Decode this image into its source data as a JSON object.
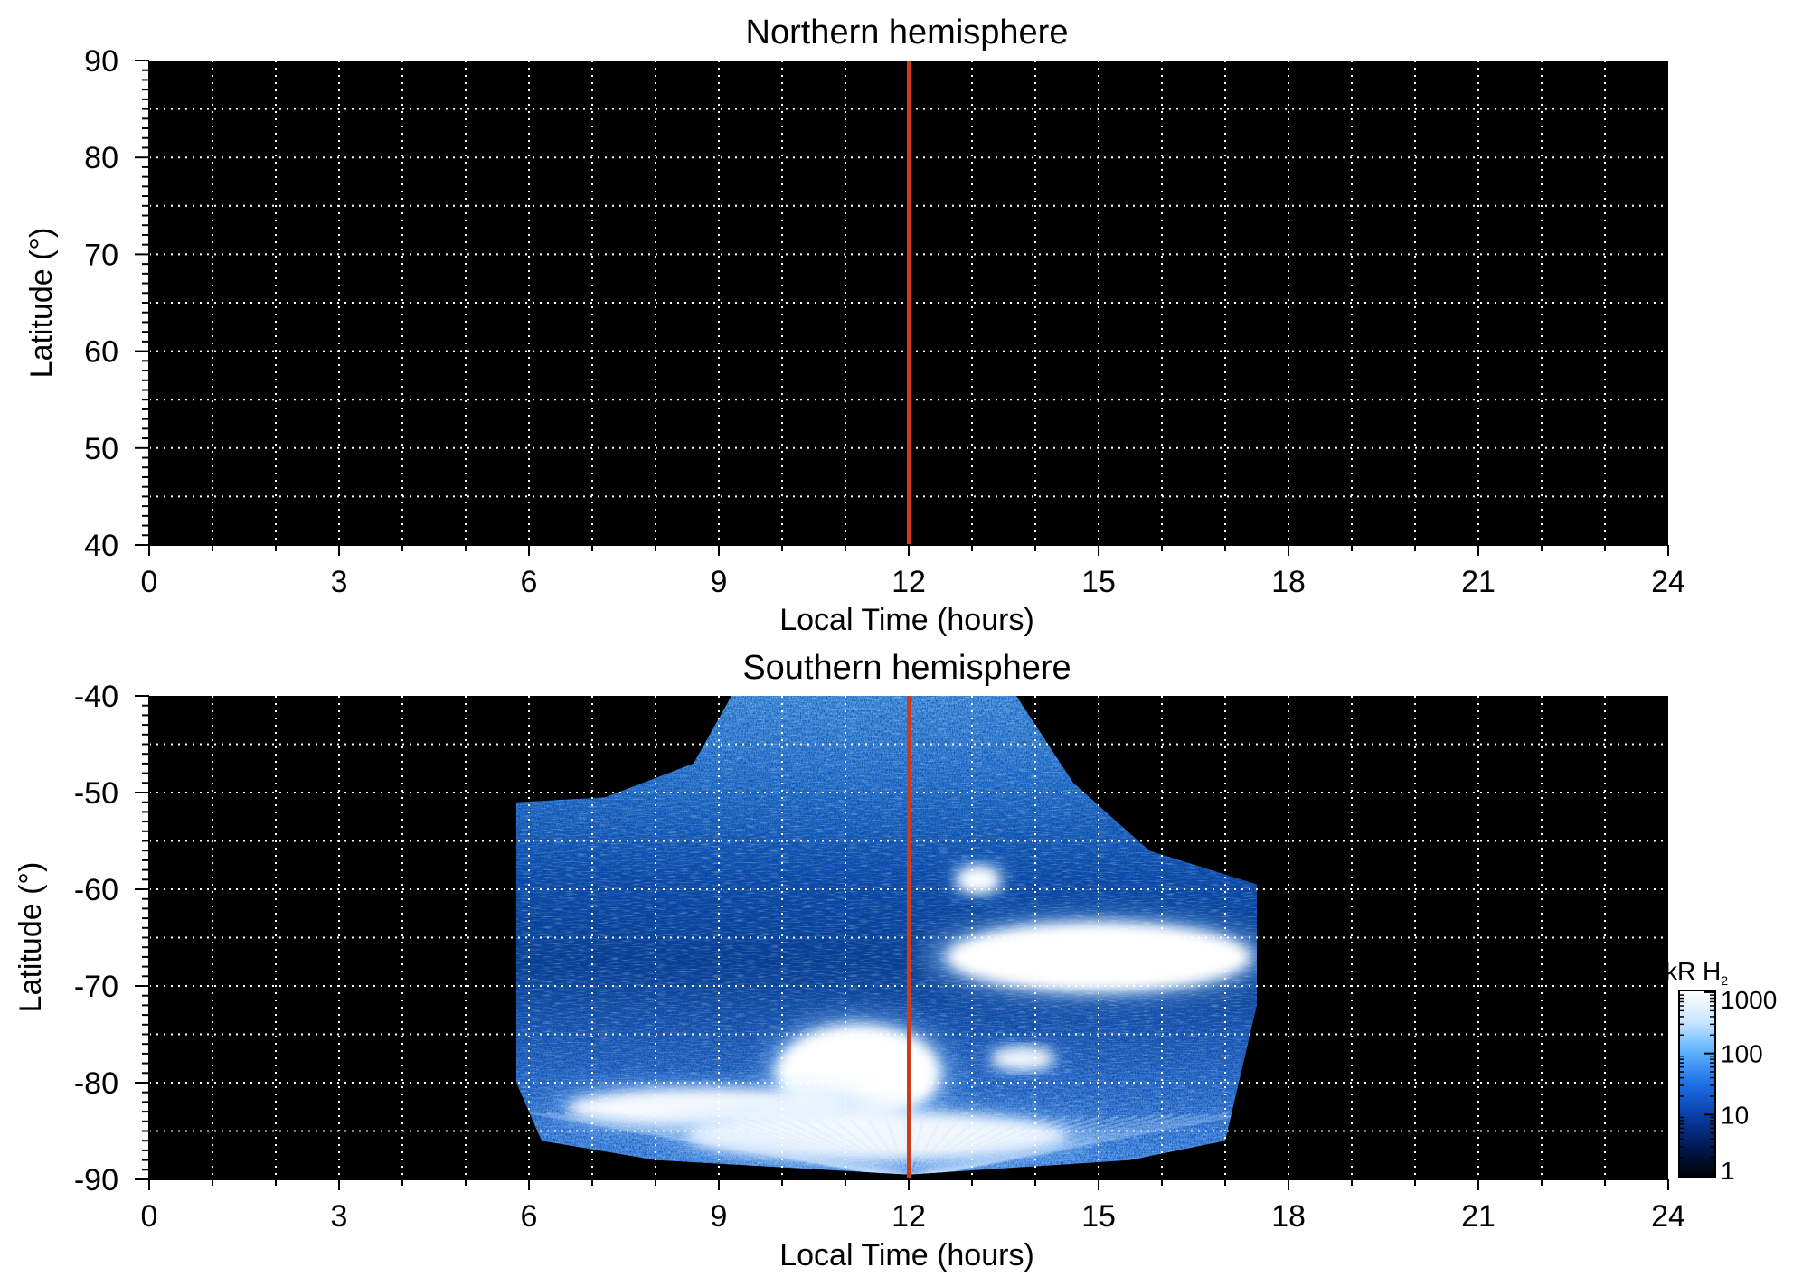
{
  "colors": {
    "background": "#000000",
    "grid": "#ffffff",
    "noon_line": "#cc3b1a",
    "aurora_colormap": [
      "#000000",
      "#001a55",
      "#0a3fa8",
      "#1e6ee6",
      "#5ab0ff",
      "#c8e6ff",
      "#ffffff"
    ]
  },
  "chart_data": [
    {
      "type": "heatmap",
      "title": "Northern hemisphere",
      "xlabel": "Local Time (hours)",
      "ylabel": "Latitude (°)",
      "xlim": [
        0,
        24
      ],
      "ylim": [
        40,
        90
      ],
      "xticks": [
        "0",
        "3",
        "6",
        "9",
        "12",
        "15",
        "18",
        "21",
        "24"
      ],
      "yticks": [
        "40",
        "50",
        "60",
        "70",
        "80",
        "90"
      ],
      "grid": true,
      "grid_style": "dotted",
      "x_grid_step": 1,
      "y_grid_step": 5,
      "reference_line_x": 12,
      "emission": "none"
    },
    {
      "type": "heatmap",
      "title": "Southern hemisphere",
      "xlabel": "Local Time (hours)",
      "ylabel": "Latitude (°)",
      "xlim": [
        0,
        24
      ],
      "ylim": [
        -90,
        -40
      ],
      "xticks": [
        "0",
        "3",
        "6",
        "9",
        "12",
        "15",
        "18",
        "21",
        "24"
      ],
      "yticks": [
        "-40",
        "-50",
        "-60",
        "-70",
        "-80",
        "-90"
      ],
      "grid": true,
      "grid_style": "dotted",
      "x_grid_step": 1,
      "y_grid_step": 5,
      "reference_line_x": 12,
      "coverage_envelope": [
        {
          "lt": 5.8,
          "lat": -51
        },
        {
          "lt": 7.2,
          "lat": -50.5
        },
        {
          "lt": 8.6,
          "lat": -47
        },
        {
          "lt": 9.2,
          "lat": -40
        },
        {
          "lt": 13.7,
          "lat": -40
        },
        {
          "lt": 14.6,
          "lat": -49
        },
        {
          "lt": 15.8,
          "lat": -56
        },
        {
          "lt": 17.5,
          "lat": -59.5
        },
        {
          "lt": 17.5,
          "lat": -72
        },
        {
          "lt": 17.0,
          "lat": -86
        },
        {
          "lt": 15.5,
          "lat": -88
        },
        {
          "lt": 12.0,
          "lat": -89.5
        },
        {
          "lt": 8.0,
          "lat": -88
        },
        {
          "lt": 6.2,
          "lat": -86
        },
        {
          "lt": 5.8,
          "lat": -80
        }
      ],
      "bright_regions": [
        {
          "lt_center": 13.1,
          "lat_center": -59,
          "lt_halfwidth": 0.35,
          "lat_halfwidth": 1.4,
          "intensity_kR": 1000
        },
        {
          "lt_center": 15.0,
          "lat_center": -67,
          "lt_halfwidth": 2.4,
          "lat_halfwidth": 3.6,
          "intensity_kR": 1000
        },
        {
          "lt_center": 11.2,
          "lat_center": -79,
          "lt_halfwidth": 1.3,
          "lat_halfwidth": 5.0,
          "intensity_kR": 1000
        },
        {
          "lt_center": 8.8,
          "lat_center": -82.6,
          "lt_halfwidth": 2.2,
          "lat_halfwidth": 2.0,
          "intensity_kR": 500
        },
        {
          "lt_center": 11.5,
          "lat_center": -85.5,
          "lt_halfwidth": 3.0,
          "lat_halfwidth": 2.5,
          "intensity_kR": 300
        },
        {
          "lt_center": 13.8,
          "lat_center": -77.5,
          "lt_halfwidth": 0.5,
          "lat_halfwidth": 1.2,
          "intensity_kR": 400
        }
      ]
    }
  ],
  "colorbar": {
    "label_main": "kR H",
    "label_sub": "2",
    "scale": "log",
    "range": [
      1,
      1000
    ],
    "ticks": [
      "1",
      "10",
      "100",
      "1000"
    ],
    "tick_values": [
      1,
      10,
      100,
      1000
    ]
  }
}
